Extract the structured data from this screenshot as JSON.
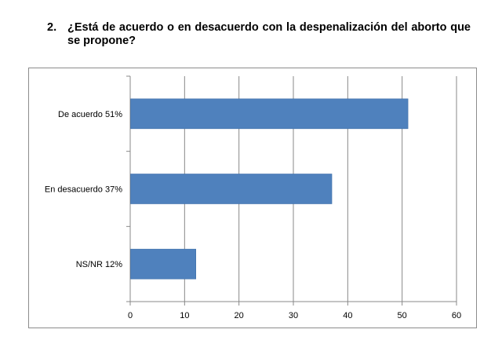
{
  "question": {
    "number": "2.",
    "text": "¿Está de acuerdo o en desacuerdo con la despenalización del aborto que se propone?"
  },
  "chart_data": {
    "type": "bar",
    "orientation": "horizontal",
    "categories": [
      "De acuerdo  51%",
      "En desacuerdo  37%",
      "NS/NR  12%"
    ],
    "values": [
      51,
      37,
      12
    ],
    "xlim": [
      0,
      60
    ],
    "xticks": [
      0,
      10,
      20,
      30,
      40,
      50,
      60
    ],
    "grid": true,
    "legend": "none",
    "title": "",
    "xlabel": "",
    "ylabel": "",
    "colors": {
      "bar": "#4f81bd",
      "bar_edge": "#3f6fa8",
      "grid": "#888888",
      "frame": "#8c8c8c"
    }
  }
}
